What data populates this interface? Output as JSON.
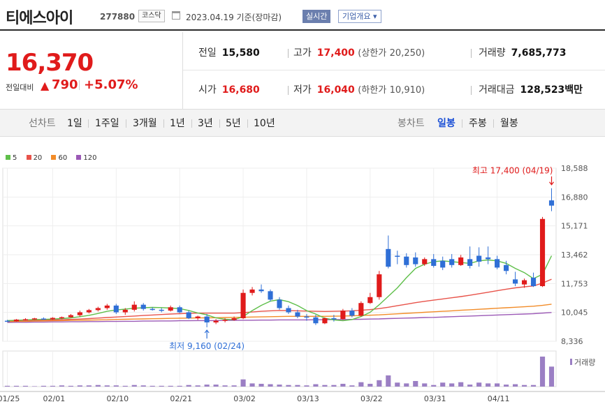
{
  "stock": {
    "name": "티에스아이",
    "code": "277880",
    "market": "코스닥",
    "date": "2023.04.19",
    "basis": "기준(장마감)",
    "realtime_label": "실시간",
    "corp_info_label": "기업개요",
    "price": "16,370",
    "change_label": "전일대비",
    "change": "790",
    "change_pct": "+5.07%"
  },
  "summary": {
    "prev_close": {
      "label": "전일",
      "value": "15,580"
    },
    "high": {
      "label": "고가",
      "value": "17,400",
      "limit_label": "(상한가",
      "limit_value": "20,250)"
    },
    "volume": {
      "label": "거래량",
      "value": "7,685,773"
    },
    "open": {
      "label": "시가",
      "value": "16,680"
    },
    "low": {
      "label": "저가",
      "value": "16,040",
      "limit_label": "(하한가",
      "limit_value": "10,910)"
    },
    "amount": {
      "label": "거래대금",
      "value": "128,523",
      "unit": "백만"
    }
  },
  "tabs": {
    "line_label": "선차트",
    "line_items": [
      "1일",
      "1주일",
      "3개월",
      "1년",
      "3년",
      "5년",
      "10년"
    ],
    "candle_label": "봉차트",
    "candle_items": [
      "일봉",
      "주봉",
      "월봉"
    ],
    "candle_active": 0
  },
  "colors": {
    "up": "#e01b1b",
    "down": "#2f6fd6",
    "ma5": "#5fbf4a",
    "ma20": "#e8534a",
    "ma60": "#f28c28",
    "ma120": "#9b59b6",
    "volume": "#9b7fc4"
  },
  "chart_data": {
    "type": "candlestick",
    "moving_averages": [
      {
        "name": "5",
        "color": "#5fbf4a"
      },
      {
        "name": "20",
        "color": "#e8534a"
      },
      {
        "name": "60",
        "color": "#f28c28"
      },
      {
        "name": "120",
        "color": "#9b59b6"
      }
    ],
    "y_ticks": [
      "18,588",
      "16,880",
      "15,171",
      "13,462",
      "11,753",
      "10,045",
      "8,336"
    ],
    "ylim": [
      8336,
      18588
    ],
    "x_ticks": [
      {
        "label": "01/25",
        "i": 0
      },
      {
        "label": "02/01",
        "i": 5
      },
      {
        "label": "02/10",
        "i": 12
      },
      {
        "label": "02/21",
        "i": 19
      },
      {
        "label": "03/02",
        "i": 26
      },
      {
        "label": "03/13",
        "i": 33
      },
      {
        "label": "03/22",
        "i": 40
      },
      {
        "label": "03/31",
        "i": 47
      },
      {
        "label": "04/11",
        "i": 54
      }
    ],
    "candles": [
      [
        9550,
        9600,
        9480,
        9500
      ],
      [
        9520,
        9650,
        9500,
        9620
      ],
      [
        9600,
        9700,
        9560,
        9640
      ],
      [
        9650,
        9720,
        9600,
        9690
      ],
      [
        9680,
        9750,
        9620,
        9640
      ],
      [
        9640,
        9760,
        9600,
        9720
      ],
      [
        9720,
        9800,
        9650,
        9760
      ],
      [
        9760,
        9950,
        9720,
        9880
      ],
      [
        9880,
        10150,
        9800,
        10050
      ],
      [
        10050,
        10250,
        9980,
        10180
      ],
      [
        10180,
        10380,
        10100,
        10300
      ],
      [
        10300,
        10550,
        10200,
        10450
      ],
      [
        10450,
        10550,
        9950,
        10050
      ],
      [
        10050,
        10300,
        9900,
        10200
      ],
      [
        10200,
        10700,
        10100,
        10500
      ],
      [
        10500,
        10600,
        10150,
        10250
      ],
      [
        10250,
        10350,
        10150,
        10200
      ],
      [
        10200,
        10300,
        10050,
        10150
      ],
      [
        10150,
        10450,
        10100,
        10350
      ],
      [
        10350,
        10450,
        10000,
        10050
      ],
      [
        10050,
        10150,
        9650,
        9700
      ],
      [
        9700,
        9850,
        9600,
        9800
      ],
      [
        9800,
        9950,
        9160,
        9450
      ],
      [
        9450,
        9650,
        9350,
        9550
      ],
      [
        9550,
        9700,
        9450,
        9600
      ],
      [
        9600,
        9800,
        9550,
        9700
      ],
      [
        9700,
        11400,
        9650,
        11200
      ],
      [
        11200,
        11550,
        11050,
        11400
      ],
      [
        11400,
        11700,
        11200,
        11300
      ],
      [
        11300,
        11400,
        10700,
        10800
      ],
      [
        10800,
        10950,
        10200,
        10300
      ],
      [
        10300,
        10450,
        9950,
        10050
      ],
      [
        10050,
        10200,
        9700,
        9800
      ],
      [
        9800,
        9950,
        9550,
        9750
      ],
      [
        9750,
        9900,
        9300,
        9400
      ],
      [
        9400,
        9750,
        9350,
        9700
      ],
      [
        9700,
        9900,
        9500,
        9650
      ],
      [
        9650,
        10250,
        9600,
        10150
      ],
      [
        10150,
        10300,
        9750,
        9850
      ],
      [
        9850,
        10700,
        9800,
        10600
      ],
      [
        10600,
        11200,
        10550,
        10950
      ],
      [
        10950,
        12500,
        10800,
        12300
      ],
      [
        13800,
        14600,
        12650,
        12750
      ],
      [
        13400,
        13700,
        12900,
        13350
      ],
      [
        13350,
        13550,
        12700,
        12850
      ],
      [
        13300,
        13600,
        12750,
        12900
      ],
      [
        12900,
        13300,
        12800,
        13200
      ],
      [
        13200,
        13500,
        12700,
        12800
      ],
      [
        13100,
        13350,
        12550,
        12700
      ],
      [
        13200,
        13500,
        12700,
        12850
      ],
      [
        12850,
        13450,
        12800,
        13300
      ],
      [
        13200,
        13950,
        12650,
        12800
      ],
      [
        13400,
        13900,
        12750,
        13050
      ],
      [
        13300,
        13950,
        12900,
        13200
      ],
      [
        13200,
        13400,
        12600,
        12700
      ],
      [
        12850,
        13100,
        12300,
        12500
      ],
      [
        12000,
        12450,
        11600,
        11750
      ],
      [
        11700,
        12050,
        11500,
        11950
      ],
      [
        12100,
        12400,
        11550,
        11600
      ],
      [
        11600,
        15700,
        11550,
        15580
      ],
      [
        16680,
        17400,
        16040,
        16370
      ]
    ],
    "volume": [
      2,
      2,
      2,
      1,
      2,
      2,
      3,
      2,
      3,
      3,
      4,
      3,
      3,
      2,
      4,
      3,
      2,
      2,
      2,
      2,
      4,
      3,
      5,
      5,
      3,
      3,
      18,
      8,
      7,
      6,
      5,
      4,
      4,
      3,
      6,
      4,
      4,
      7,
      3,
      11,
      7,
      16,
      28,
      10,
      8,
      14,
      8,
      4,
      10,
      8,
      11,
      5,
      10,
      8,
      8,
      5,
      6,
      4,
      4,
      75,
      50
    ],
    "ma5": [
      9560,
      9580,
      9600,
      9620,
      9630,
      9650,
      9680,
      9720,
      9790,
      9870,
      9980,
      10110,
      10190,
      10240,
      10290,
      10320,
      10340,
      10330,
      10300,
      10270,
      10160,
      10010,
      9900,
      9720,
      9640,
      9610,
      9800,
      10150,
      10460,
      10710,
      10800,
      10680,
      10450,
      10150,
      9950,
      9700,
      9600,
      9550,
      9620,
      9800,
      10050,
      10500,
      11000,
      11500,
      12100,
      12650,
      12900,
      13050,
      13100,
      13050,
      13000,
      12950,
      13100,
      13150,
      13100,
      12950,
      12650,
      12400,
      12050,
      12300,
      13400
    ],
    "ma20": [
      9550,
      9560,
      9570,
      9580,
      9590,
      9600,
      9610,
      9630,
      9650,
      9680,
      9710,
      9740,
      9770,
      9800,
      9830,
      9860,
      9890,
      9920,
      9950,
      9970,
      9990,
      10000,
      10000,
      10000,
      10000,
      10000,
      10030,
      10070,
      10110,
      10140,
      10160,
      10150,
      10140,
      10120,
      10110,
      10100,
      10110,
      10120,
      10140,
      10170,
      10210,
      10270,
      10350,
      10440,
      10530,
      10620,
      10700,
      10770,
      10840,
      10910,
      10980,
      11060,
      11150,
      11240,
      11330,
      11420,
      11500,
      11560,
      11610,
      11780,
      12010
    ],
    "ma60": [
      9500,
      9510,
      9520,
      9530,
      9540,
      9550,
      9560,
      9570,
      9580,
      9590,
      9600,
      9610,
      9630,
      9640,
      9650,
      9660,
      9670,
      9680,
      9690,
      9700,
      9710,
      9720,
      9720,
      9730,
      9740,
      9750,
      9760,
      9770,
      9780,
      9790,
      9800,
      9810,
      9810,
      9810,
      9810,
      9810,
      9820,
      9830,
      9840,
      9860,
      9880,
      9900,
      9930,
      9960,
      9990,
      10020,
      10050,
      10080,
      10110,
      10140,
      10170,
      10200,
      10230,
      10260,
      10290,
      10320,
      10350,
      10380,
      10410,
      10460,
      10530
    ],
    "ma120": [
      9450,
      9460,
      9460,
      9470,
      9470,
      9480,
      9480,
      9490,
      9490,
      9500,
      9500,
      9510,
      9510,
      9520,
      9520,
      9530,
      9530,
      9540,
      9540,
      9550,
      9550,
      9560,
      9560,
      9560,
      9570,
      9570,
      9580,
      9580,
      9590,
      9590,
      9600,
      9600,
      9600,
      9600,
      9610,
      9610,
      9620,
      9620,
      9630,
      9640,
      9650,
      9660,
      9680,
      9690,
      9710,
      9720,
      9740,
      9750,
      9770,
      9790,
      9810,
      9830,
      9850,
      9870,
      9890,
      9910,
      9930,
      9950,
      9970,
      10000,
      10040
    ],
    "high_annotation": "최고 17,400 (04/19)",
    "low_annotation": "최저 9,160 (02/24)",
    "volume_label": "거래량"
  }
}
